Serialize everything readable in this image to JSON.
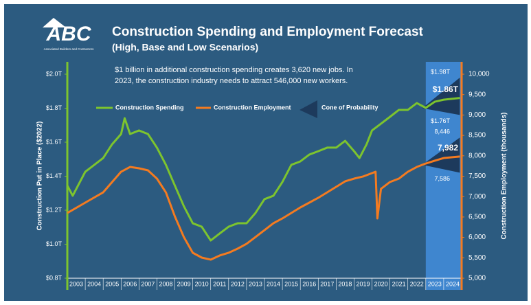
{
  "chart_data": {
    "type": "line",
    "title": "Construction Spending and Employment Forecast",
    "subtitle": "(High, Base and Low Scenarios)",
    "annotation": [
      "$1 billion in additional construction spending creates 3,620 new jobs. In",
      "2023, the construction industry needs to attract 546,000 new workers."
    ],
    "logo": {
      "text": "ABC",
      "caption": "Associated Builders and Contractors"
    },
    "ylabel": "Construction Put in Place ($2022)",
    "y2label": "Construction Employment (thousands)",
    "xlim": [
      2003,
      2025
    ],
    "xticks": [
      2003,
      2004,
      2005,
      2006,
      2007,
      2008,
      2009,
      2010,
      2011,
      2012,
      2013,
      2014,
      2015,
      2016,
      2017,
      2018,
      2019,
      2020,
      2021,
      2022,
      2023,
      2024
    ],
    "ylim": [
      0.8,
      2.0
    ],
    "yticks": [
      {
        "value": 0.8,
        "label": "$0.8T"
      },
      {
        "value": 1.0,
        "label": "$1.0T"
      },
      {
        "value": 1.2,
        "label": "$1.2T"
      },
      {
        "value": 1.4,
        "label": "$1.4T"
      },
      {
        "value": 1.6,
        "label": "$1.6T"
      },
      {
        "value": 1.8,
        "label": "$1.8T"
      },
      {
        "value": 2.0,
        "label": "$2.0T"
      }
    ],
    "y2lim": [
      5000,
      10000
    ],
    "y2ticks": [
      {
        "value": 5000,
        "label": "5,000"
      },
      {
        "value": 5500,
        "label": "5,500"
      },
      {
        "value": 6000,
        "label": "6,000"
      },
      {
        "value": 6500,
        "label": "6,500"
      },
      {
        "value": 7000,
        "label": "7,000"
      },
      {
        "value": 7500,
        "label": "7,500"
      },
      {
        "value": 8000,
        "label": "8,000"
      },
      {
        "value": 8500,
        "label": "8,500"
      },
      {
        "value": 9000,
        "label": "9,000"
      },
      {
        "value": 9500,
        "label": "9,500"
      },
      {
        "value": 10000,
        "label": "10,000"
      }
    ],
    "forecast_span": [
      2023,
      2025
    ],
    "forecast_color": "#3f86cf",
    "series": [
      {
        "name": "Construction Spending",
        "color": "#7dc42e",
        "axis": "y",
        "x": [
          2003.0,
          2003.3,
          2004.0,
          2005.0,
          2005.5,
          2006.0,
          2006.2,
          2006.5,
          2007.0,
          2007.5,
          2008.0,
          2008.5,
          2009.0,
          2009.5,
          2010.0,
          2010.5,
          2011.0,
          2011.5,
          2012.0,
          2012.5,
          2013.0,
          2013.5,
          2014.0,
          2014.5,
          2015.0,
          2015.5,
          2016.0,
          2016.5,
          2017.0,
          2017.5,
          2018.0,
          2018.5,
          2019.0,
          2019.3,
          2019.7,
          2020.0,
          2020.5,
          2021.0,
          2021.5,
          2022.0,
          2022.5,
          2023.0,
          2023.5,
          2024.0,
          2024.9
        ],
        "values": [
          1.345,
          1.285,
          1.426,
          1.507,
          1.588,
          1.648,
          1.741,
          1.648,
          1.669,
          1.648,
          1.568,
          1.467,
          1.345,
          1.224,
          1.123,
          1.103,
          1.022,
          1.063,
          1.103,
          1.123,
          1.123,
          1.184,
          1.265,
          1.285,
          1.366,
          1.467,
          1.487,
          1.527,
          1.547,
          1.568,
          1.568,
          1.608,
          1.547,
          1.507,
          1.588,
          1.669,
          1.709,
          1.749,
          1.79,
          1.79,
          1.83,
          1.802,
          1.838,
          1.85,
          1.86
        ],
        "end_label": "$1.86T"
      },
      {
        "name": "Construction Employment",
        "color": "#f47b20",
        "axis": "y2",
        "x": [
          2003.0,
          2004.0,
          2005.0,
          2005.5,
          2006.0,
          2006.5,
          2007.0,
          2007.5,
          2008.0,
          2008.5,
          2009.0,
          2009.5,
          2010.0,
          2010.5,
          2011.0,
          2011.5,
          2012.0,
          2012.5,
          2013.0,
          2013.5,
          2014.0,
          2014.5,
          2015.0,
          2015.5,
          2016.0,
          2016.5,
          2017.0,
          2017.5,
          2018.0,
          2018.5,
          2019.0,
          2019.5,
          2020.0,
          2020.2,
          2020.3,
          2020.5,
          2021.0,
          2021.5,
          2022.0,
          2022.5,
          2023.0,
          2023.5,
          2024.0,
          2024.9
        ],
        "values": [
          6599,
          6852,
          7104,
          7357,
          7609,
          7727,
          7694,
          7643,
          7441,
          7104,
          6515,
          6010,
          5623,
          5505,
          5455,
          5556,
          5623,
          5724,
          5842,
          6010,
          6178,
          6347,
          6465,
          6599,
          6734,
          6852,
          6970,
          7104,
          7239,
          7374,
          7441,
          7492,
          7576,
          7609,
          6465,
          7189,
          7357,
          7441,
          7609,
          7727,
          7811,
          7879,
          7946,
          7982
        ],
        "end_label": "7,982"
      }
    ],
    "cone": {
      "name": "Cone of Probability",
      "color": "#1d3a5c",
      "bands": [
        {
          "axis": "y",
          "x": [
            2022.8,
            2024.9
          ],
          "high": [
            1.8,
            1.98
          ],
          "low": [
            1.8,
            1.76
          ],
          "high_label": "$1.98T",
          "low_label": "$1.76T"
        },
        {
          "axis": "y2",
          "x": [
            2022.8,
            2024.9
          ],
          "high": [
            7780,
            8446
          ],
          "low": [
            7780,
            7586
          ],
          "high_label": "8,446",
          "low_label": "7,586"
        }
      ]
    }
  }
}
